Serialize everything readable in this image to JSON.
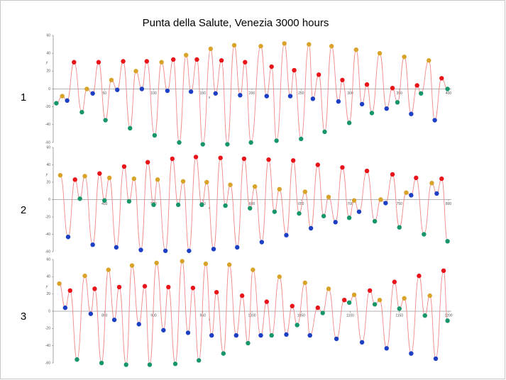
{
  "title": "Punta della Salute, Venezia  3000 hours",
  "chart_data": [
    {
      "type": "line",
      "panel_label": "1",
      "xlabel": "x",
      "ylabel": "y",
      "line_color": "#f08a8a",
      "color_cycle": [
        "#17966a",
        "#d9a32a",
        "#1c3fc4",
        "#e8141a"
      ],
      "xlim": [
        0,
        400
      ],
      "ylim": [
        -60,
        60
      ],
      "xticks": [
        50,
        100,
        150,
        200,
        250,
        300,
        350,
        400
      ],
      "yticks": [
        -60,
        -40,
        -20,
        0,
        20,
        40,
        60
      ],
      "x": [
        1,
        7,
        12,
        19,
        27,
        32,
        38,
        44,
        51,
        57,
        63,
        69,
        76,
        82,
        88,
        93,
        101,
        108,
        114,
        120,
        126,
        133,
        138,
        144,
        150,
        158,
        163,
        169,
        175,
        182,
        188,
        193,
        199,
        209,
        215,
        220,
        225,
        233,
        239,
        243,
        250,
        258,
        262,
        268,
        274,
        281,
        288,
        292,
        299,
        306,
        312,
        317,
        322,
        330,
        337,
        343,
        348,
        355,
        362,
        368,
        372,
        380,
        386,
        393,
        399
      ],
      "values": [
        -16,
        -8,
        -13,
        30,
        -26,
        0,
        -5,
        30,
        -35,
        10,
        -1,
        31,
        -44,
        20,
        0,
        31,
        -52,
        30,
        -2,
        33,
        -60,
        38,
        -3,
        33,
        -62,
        45,
        -5,
        32,
        -62,
        49,
        -7,
        30,
        -60,
        48,
        -8,
        25,
        -58,
        51,
        -8,
        21,
        -56,
        50,
        -11,
        16,
        -48,
        48,
        -14,
        10,
        -38,
        44,
        -17,
        5,
        -27,
        40,
        -22,
        1,
        -15,
        36,
        -28,
        4,
        -5,
        32,
        -35,
        12,
        0
      ]
    },
    {
      "type": "line",
      "panel_label": "2",
      "xlabel": "x",
      "ylabel": "y",
      "line_color": "#f08a8a",
      "color_cycle": [
        "#d9a32a",
        "#1c3fc4",
        "#e8141a",
        "#17966a"
      ],
      "xlim": [
        400,
        800
      ],
      "ylim": [
        -60,
        60
      ],
      "xticks": [
        450,
        500,
        550,
        600,
        650,
        700,
        750,
        800
      ],
      "yticks": [
        -60,
        -40,
        -20,
        0,
        20,
        40,
        60
      ],
      "x": [
        405,
        413,
        420,
        425,
        430,
        438,
        445,
        450,
        455,
        462,
        470,
        475,
        480,
        487,
        494,
        500,
        504,
        512,
        519,
        525,
        530,
        536,
        543,
        549,
        554,
        561,
        568,
        573,
        578,
        585,
        592,
        598,
        603,
        610,
        617,
        623,
        628,
        635,
        642,
        648,
        654,
        660,
        667,
        673,
        678,
        685,
        692,
        699,
        704,
        709,
        717,
        725,
        731,
        736,
        743,
        750,
        757,
        762,
        767,
        775,
        783,
        788,
        793,
        799
      ],
      "values": [
        28,
        -43,
        23,
        1,
        27,
        -52,
        30,
        -1,
        25,
        -55,
        38,
        -2,
        24,
        -58,
        43,
        -6,
        23,
        -59,
        47,
        -6,
        21,
        -59,
        49,
        -6,
        20,
        -57,
        48,
        -7,
        17,
        -55,
        47,
        -10,
        15,
        -49,
        46,
        -14,
        12,
        -41,
        45,
        -16,
        9,
        -33,
        40,
        -19,
        3,
        -26,
        37,
        -21,
        -1,
        -14,
        33,
        -25,
        0,
        -4,
        29,
        -32,
        8,
        5,
        25,
        -40,
        19,
        7,
        24,
        -48
      ]
    },
    {
      "type": "line",
      "panel_label": "3",
      "xlabel": "x",
      "ylabel": "y",
      "line_color": "#f08a8a",
      "color_cycle": [
        "#d9a32a",
        "#1c3fc4",
        "#e8141a",
        "#17966a"
      ],
      "xlim": [
        800,
        1200
      ],
      "ylim": [
        -60,
        60
      ],
      "xticks": [
        850,
        900,
        950,
        1000,
        1050,
        1100,
        1150,
        1200
      ],
      "yticks": [
        -60,
        -40,
        -20,
        0,
        20,
        40,
        60
      ],
      "x": [
        804,
        810,
        815,
        822,
        830,
        836,
        840,
        847,
        854,
        860,
        865,
        872,
        878,
        885,
        891,
        896,
        903,
        910,
        915,
        922,
        929,
        935,
        940,
        946,
        953,
        959,
        964,
        971,
        977,
        984,
        990,
        996,
        1001,
        1009,
        1015,
        1020,
        1028,
        1035,
        1041,
        1046,
        1054,
        1059,
        1067,
        1072,
        1078,
        1086,
        1094,
        1099,
        1104,
        1112,
        1120,
        1125,
        1130,
        1137,
        1145,
        1150,
        1155,
        1162,
        1170,
        1176,
        1181,
        1187,
        1195,
        1199
      ],
      "values": [
        32,
        4,
        24,
        -56,
        41,
        -3,
        26,
        -60,
        48,
        -10,
        28,
        -62,
        53,
        -15,
        29,
        -62,
        56,
        -22,
        28,
        -61,
        58,
        -25,
        27,
        -57,
        55,
        -28,
        22,
        -49,
        54,
        -28,
        18,
        -37,
        48,
        -28,
        11,
        -28,
        40,
        -27,
        6,
        -16,
        33,
        -28,
        4,
        -2,
        26,
        -32,
        13,
        10,
        19,
        -36,
        24,
        8,
        13,
        -43,
        34,
        3,
        15,
        -49,
        41,
        -5,
        18,
        -55,
        47,
        -11
      ]
    }
  ]
}
